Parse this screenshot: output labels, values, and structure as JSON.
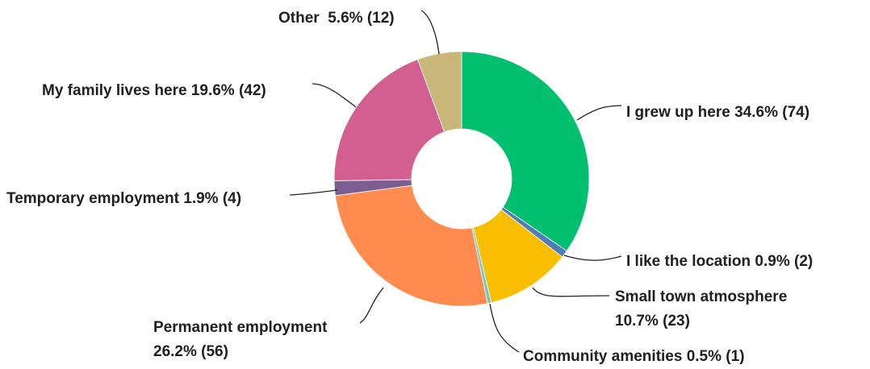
{
  "chart_data": {
    "type": "pie",
    "style": "donut",
    "slices": [
      {
        "label": "I grew up here",
        "percent": 34.6,
        "count": 74,
        "color": "#00bf6f",
        "text_lines": [
          "I grew up here 34.6% (74)"
        ]
      },
      {
        "label": "I like the location",
        "percent": 0.9,
        "count": 2,
        "color": "#507cb6",
        "text_lines": [
          "I like the location 0.9% (2)"
        ]
      },
      {
        "label": "Small town atmosphere",
        "percent": 10.7,
        "count": 23,
        "color": "#f9be00",
        "text_lines": [
          "Small town atmosphere",
          "10.7% (23)"
        ]
      },
      {
        "label": "Community amenities",
        "percent": 0.5,
        "count": 1,
        "color": "#6bc8cd",
        "text_lines": [
          "Community amenities 0.5% (1)"
        ]
      },
      {
        "label": "Permanent employment",
        "percent": 26.2,
        "count": 56,
        "color": "#ff8b4f",
        "text_lines": [
          "Permanent employment",
          "26.2% (56)"
        ]
      },
      {
        "label": "Temporary employment",
        "percent": 1.9,
        "count": 4,
        "color": "#7d5e90",
        "text_lines": [
          "Temporary employment 1.9% (4)"
        ]
      },
      {
        "label": "My family lives here",
        "percent": 19.6,
        "count": 42,
        "color": "#d25f90",
        "text_lines": [
          "My family lives here 19.6% (42)"
        ]
      },
      {
        "label": "Other",
        "percent": 5.6,
        "count": 12,
        "color": "#c9b77a",
        "text_lines": [
          "Other  5.6% (12)"
        ]
      }
    ]
  }
}
